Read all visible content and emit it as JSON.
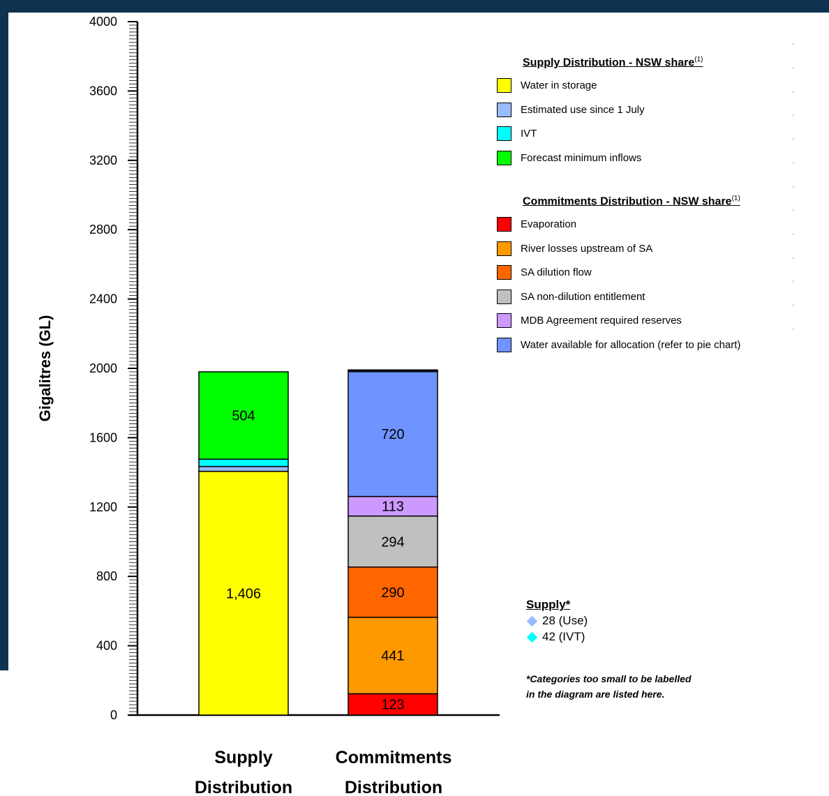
{
  "chart_data": {
    "type": "bar",
    "stacked": true,
    "ylabel": "Gigalitres (GL)",
    "ylim": [
      0,
      4000
    ],
    "yticks": [
      0,
      400,
      800,
      1200,
      1600,
      2000,
      2400,
      2800,
      3200,
      3600,
      4000
    ],
    "categories": [
      {
        "line1": "Supply",
        "line2": "Distribution"
      },
      {
        "line1": "Commitments",
        "line2": "Distribution"
      }
    ],
    "stacks": [
      {
        "category_index": 0,
        "segments": [
          {
            "name": "Water in storage",
            "value": 1406,
            "label": "1,406",
            "color": "#ffff00"
          },
          {
            "name": "Estimated use since 1 July",
            "value": 28,
            "label": "",
            "color": "#99bbff"
          },
          {
            "name": "IVT",
            "value": 42,
            "label": "",
            "color": "#00ffff"
          },
          {
            "name": "Forecast minimum inflows",
            "value": 504,
            "label": "504",
            "color": "#00ff00"
          }
        ]
      },
      {
        "category_index": 1,
        "segments": [
          {
            "name": "Evaporation",
            "value": 123,
            "label": "123",
            "color": "#ff0000"
          },
          {
            "name": "River losses upstream of SA",
            "value": 441,
            "label": "441",
            "color": "#ff9900"
          },
          {
            "name": "SA dilution flow",
            "value": 290,
            "label": "290",
            "color": "#ff6600"
          },
          {
            "name": "SA non-dilution entitlement",
            "value": 294,
            "label": "294",
            "color": "#c0c0c0"
          },
          {
            "name": "MDB Agreement required reserves",
            "value": 113,
            "label": "113",
            "color": "#cc99ff"
          },
          {
            "name": "Water available for allocation (refer to pie chart)",
            "value": 720,
            "label": "720",
            "color": "#6f94ff"
          },
          {
            "name": "",
            "value": 10,
            "label": "",
            "color": "#111111"
          }
        ]
      }
    ]
  },
  "legend_supply": {
    "title": "Supply Distribution - NSW share",
    "title_sup": "(1)",
    "items": [
      {
        "label": "Water in storage",
        "color": "#ffff00"
      },
      {
        "label": "Estimated use since 1 July",
        "color": "#99bbff"
      },
      {
        "label": "IVT",
        "color": "#00ffff"
      },
      {
        "label": "Forecast minimum inflows",
        "color": "#00ff00"
      }
    ]
  },
  "legend_commitments": {
    "title": "Commitments Distribution - NSW share",
    "title_sup": "(1)",
    "items": [
      {
        "label": "Evaporation",
        "color": "#ff0000"
      },
      {
        "label": "River losses upstream of SA",
        "color": "#ff9900"
      },
      {
        "label": "SA dilution flow",
        "color": "#ff6600"
      },
      {
        "label": "SA non-dilution entitlement",
        "color": "#c0c0c0"
      },
      {
        "label": "MDB Agreement required reserves",
        "color": "#cc99ff"
      },
      {
        "label": "Water available for allocation (refer to pie chart)",
        "color": "#6f94ff"
      }
    ]
  },
  "supply_note": {
    "title": "Supply*",
    "items": [
      {
        "label": "28 (Use)",
        "color": "#99bbff"
      },
      {
        "label": "42 (IVT)",
        "color": "#00ffff"
      }
    ]
  },
  "footnote": {
    "line1": "*Categories too small to be labelled",
    "line2": "in the diagram are listed here."
  }
}
